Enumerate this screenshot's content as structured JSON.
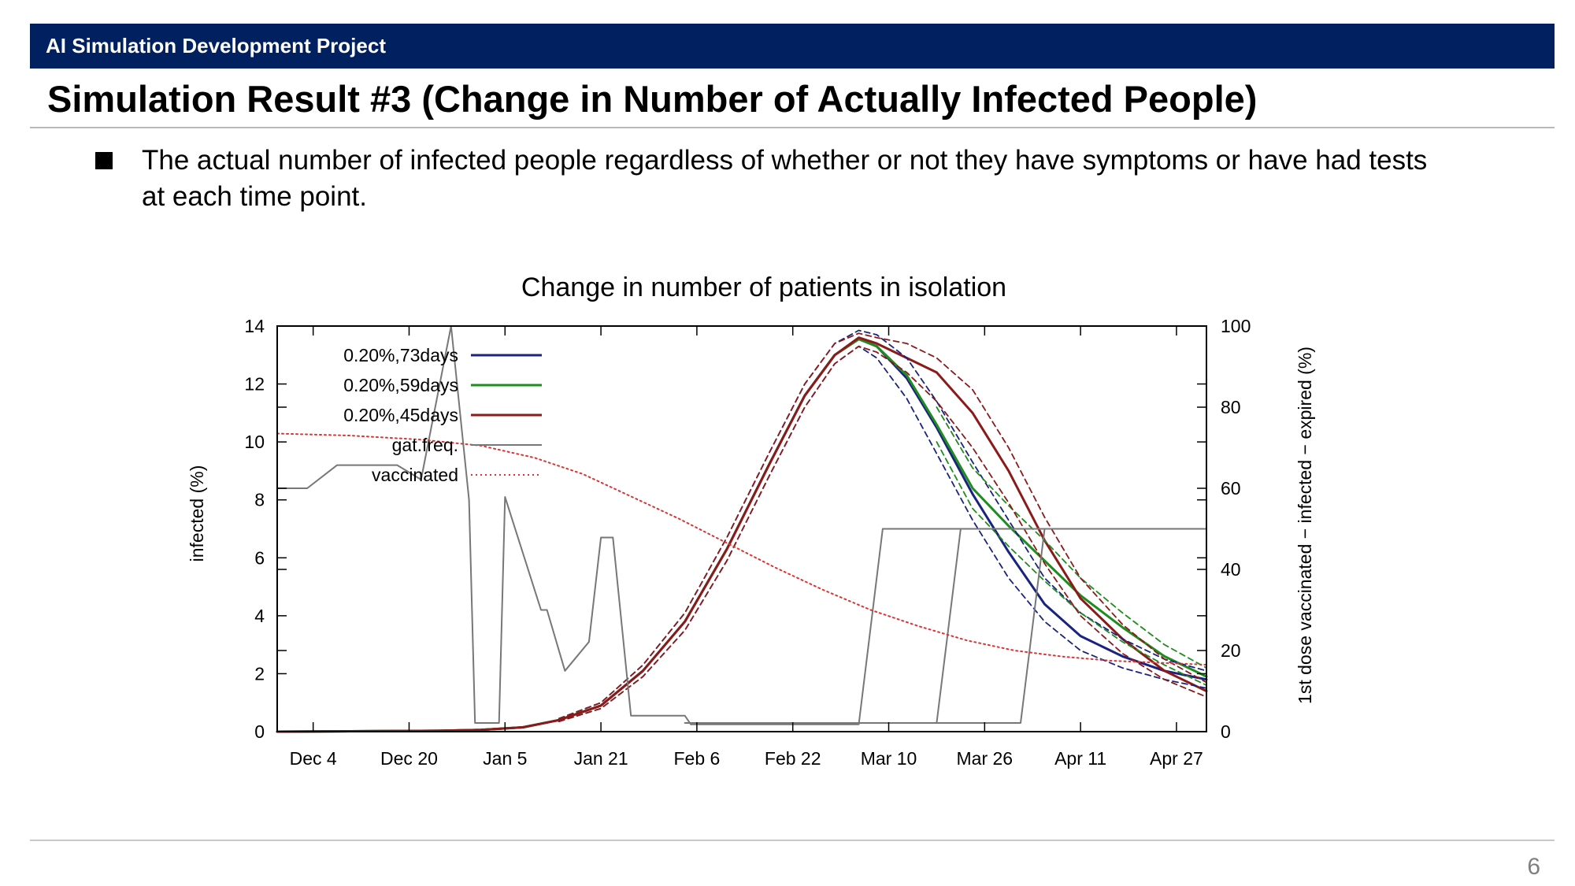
{
  "header": {
    "project": "AI Simulation Development Project"
  },
  "slide": {
    "title": "Simulation Result #3 (Change in Number of Actually Infected People)",
    "bullet": "The actual number of infected people regardless of whether or not they have symptoms or have had tests at each time point.",
    "page_number": "6"
  },
  "chart_data": {
    "type": "line",
    "title": "Change in number of patients in isolation",
    "ylabel": "infected (%)",
    "y2label": "1st dose vaccinated − infected − expired (%)",
    "ylim": [
      0,
      14
    ],
    "y2lim": [
      0,
      100
    ],
    "yticks": [
      0,
      2,
      4,
      6,
      8,
      10,
      12,
      14
    ],
    "y2ticks": [
      0,
      20,
      40,
      60,
      80,
      100
    ],
    "x_dates": [
      "2020-11-28",
      "2021-05-02"
    ],
    "x_ticks": [
      {
        "label": "Dec 4",
        "date": "2020-12-04"
      },
      {
        "label": "Dec 20",
        "date": "2020-12-20"
      },
      {
        "label": "Jan 5",
        "date": "2021-01-05"
      },
      {
        "label": "Jan 21",
        "date": "2021-01-21"
      },
      {
        "label": "Feb 6",
        "date": "2021-02-06"
      },
      {
        "label": "Feb 22",
        "date": "2021-02-22"
      },
      {
        "label": "Mar 10",
        "date": "2021-03-10"
      },
      {
        "label": "Mar 26",
        "date": "2021-03-26"
      },
      {
        "label": "Apr 11",
        "date": "2021-04-11"
      },
      {
        "label": "Apr 27",
        "date": "2021-04-27"
      }
    ],
    "legend_position": "top-left",
    "legend": [
      {
        "label": "0.20%,73days",
        "color": "#1a237e",
        "dash": "solid"
      },
      {
        "label": "0.20%,59days",
        "color": "#1e8c1e",
        "dash": "solid"
      },
      {
        "label": "0.20%,45days",
        "color": "#8b1a1a",
        "dash": "solid"
      },
      {
        "label": "gat.freq.",
        "color": "#777777",
        "dash": "solid"
      },
      {
        "label": "vaccinated",
        "color": "#dd3333",
        "dash": "dotted"
      }
    ],
    "series": [
      {
        "label_ref": 0,
        "axis": "y",
        "color": "#1a237e",
        "dash": "solid",
        "width": 3,
        "points": [
          [
            "2020-11-28",
            0
          ],
          [
            "2020-12-25",
            0.03
          ],
          [
            "2021-01-01",
            0.06
          ],
          [
            "2021-01-08",
            0.15
          ],
          [
            "2021-01-14",
            0.4
          ],
          [
            "2021-01-21",
            0.9
          ],
          [
            "2021-01-28",
            2.1
          ],
          [
            "2021-02-04",
            3.8
          ],
          [
            "2021-02-11",
            6.3
          ],
          [
            "2021-02-18",
            9.2
          ],
          [
            "2021-02-24",
            11.6
          ],
          [
            "2021-03-01",
            13.0
          ],
          [
            "2021-03-05",
            13.55
          ],
          [
            "2021-03-08",
            13.3
          ],
          [
            "2021-03-13",
            12.2
          ],
          [
            "2021-03-18",
            10.5
          ],
          [
            "2021-03-24",
            8.2
          ],
          [
            "2021-03-30",
            6.2
          ],
          [
            "2021-04-05",
            4.4
          ],
          [
            "2021-04-11",
            3.3
          ],
          [
            "2021-04-18",
            2.6
          ],
          [
            "2021-04-25",
            2.1
          ],
          [
            "2021-05-02",
            1.8
          ]
        ]
      },
      {
        "label_ref": 1,
        "axis": "y",
        "color": "#1e8c1e",
        "dash": "solid",
        "width": 3,
        "points": [
          [
            "2020-11-28",
            0
          ],
          [
            "2020-12-25",
            0.03
          ],
          [
            "2021-01-01",
            0.06
          ],
          [
            "2021-01-08",
            0.15
          ],
          [
            "2021-01-14",
            0.4
          ],
          [
            "2021-01-21",
            0.9
          ],
          [
            "2021-01-28",
            2.1
          ],
          [
            "2021-02-04",
            3.8
          ],
          [
            "2021-02-11",
            6.3
          ],
          [
            "2021-02-18",
            9.2
          ],
          [
            "2021-02-24",
            11.6
          ],
          [
            "2021-03-01",
            13.0
          ],
          [
            "2021-03-05",
            13.55
          ],
          [
            "2021-03-08",
            13.3
          ],
          [
            "2021-03-13",
            12.3
          ],
          [
            "2021-03-18",
            10.6
          ],
          [
            "2021-03-24",
            8.4
          ],
          [
            "2021-03-30",
            7.1
          ],
          [
            "2021-04-05",
            5.9
          ],
          [
            "2021-04-11",
            4.7
          ],
          [
            "2021-04-18",
            3.6
          ],
          [
            "2021-04-25",
            2.6
          ],
          [
            "2021-05-02",
            1.9
          ]
        ]
      },
      {
        "label_ref": 2,
        "axis": "y",
        "color": "#8b1a1a",
        "dash": "solid",
        "width": 3,
        "points": [
          [
            "2020-11-28",
            0
          ],
          [
            "2020-12-25",
            0.03
          ],
          [
            "2021-01-01",
            0.06
          ],
          [
            "2021-01-08",
            0.15
          ],
          [
            "2021-01-14",
            0.4
          ],
          [
            "2021-01-21",
            0.9
          ],
          [
            "2021-01-28",
            2.1
          ],
          [
            "2021-02-04",
            3.8
          ],
          [
            "2021-02-11",
            6.3
          ],
          [
            "2021-02-18",
            9.2
          ],
          [
            "2021-02-24",
            11.6
          ],
          [
            "2021-03-01",
            13.0
          ],
          [
            "2021-03-05",
            13.6
          ],
          [
            "2021-03-08",
            13.4
          ],
          [
            "2021-03-13",
            12.9
          ],
          [
            "2021-03-18",
            12.4
          ],
          [
            "2021-03-24",
            11.0
          ],
          [
            "2021-03-30",
            9.0
          ],
          [
            "2021-04-05",
            6.6
          ],
          [
            "2021-04-11",
            4.6
          ],
          [
            "2021-04-18",
            3.2
          ],
          [
            "2021-04-25",
            2.1
          ],
          [
            "2021-05-02",
            1.4
          ]
        ]
      },
      {
        "axis": "y",
        "color": "#1a237e",
        "dash": "dashed",
        "width": 1.8,
        "points": [
          [
            "2021-01-14",
            0.45
          ],
          [
            "2021-01-21",
            1.0
          ],
          [
            "2021-01-28",
            2.3
          ],
          [
            "2021-02-04",
            4.1
          ],
          [
            "2021-02-11",
            6.7
          ],
          [
            "2021-02-18",
            9.6
          ],
          [
            "2021-02-24",
            12.0
          ],
          [
            "2021-03-01",
            13.4
          ],
          [
            "2021-03-05",
            13.85
          ],
          [
            "2021-03-08",
            13.7
          ],
          [
            "2021-03-13",
            12.9
          ],
          [
            "2021-03-18",
            11.4
          ],
          [
            "2021-03-24",
            9.3
          ],
          [
            "2021-03-30",
            7.3
          ],
          [
            "2021-04-05",
            5.3
          ],
          [
            "2021-04-11",
            4.1
          ],
          [
            "2021-04-18",
            3.2
          ],
          [
            "2021-04-25",
            2.5
          ],
          [
            "2021-05-02",
            2.1
          ]
        ]
      },
      {
        "axis": "y",
        "color": "#1a237e",
        "dash": "dashed",
        "width": 1.8,
        "points": [
          [
            "2021-01-14",
            0.35
          ],
          [
            "2021-01-21",
            0.8
          ],
          [
            "2021-01-28",
            1.9
          ],
          [
            "2021-02-04",
            3.5
          ],
          [
            "2021-02-11",
            5.9
          ],
          [
            "2021-02-18",
            8.8
          ],
          [
            "2021-02-24",
            11.2
          ],
          [
            "2021-03-01",
            12.7
          ],
          [
            "2021-03-05",
            13.3
          ],
          [
            "2021-03-08",
            12.9
          ],
          [
            "2021-03-13",
            11.5
          ],
          [
            "2021-03-18",
            9.6
          ],
          [
            "2021-03-24",
            7.3
          ],
          [
            "2021-03-30",
            5.3
          ],
          [
            "2021-04-05",
            3.8
          ],
          [
            "2021-04-11",
            2.8
          ],
          [
            "2021-04-18",
            2.2
          ],
          [
            "2021-04-25",
            1.8
          ],
          [
            "2021-05-02",
            1.5
          ]
        ]
      },
      {
        "axis": "y",
        "color": "#1e8c1e",
        "dash": "dashed",
        "width": 1.8,
        "points": [
          [
            "2021-03-18",
            11.2
          ],
          [
            "2021-03-24",
            9.1
          ],
          [
            "2021-03-30",
            7.8
          ],
          [
            "2021-04-05",
            6.6
          ],
          [
            "2021-04-11",
            5.3
          ],
          [
            "2021-04-18",
            4.1
          ],
          [
            "2021-04-25",
            3.0
          ],
          [
            "2021-05-02",
            2.2
          ]
        ]
      },
      {
        "axis": "y",
        "color": "#1e8c1e",
        "dash": "dashed",
        "width": 1.8,
        "points": [
          [
            "2021-03-18",
            10.0
          ],
          [
            "2021-03-24",
            7.7
          ],
          [
            "2021-03-30",
            6.4
          ],
          [
            "2021-04-05",
            5.2
          ],
          [
            "2021-04-11",
            4.1
          ],
          [
            "2021-04-18",
            3.1
          ],
          [
            "2021-04-25",
            2.3
          ],
          [
            "2021-05-02",
            1.6
          ]
        ]
      },
      {
        "axis": "y",
        "color": "#8b1a1a",
        "dash": "dashed",
        "width": 1.8,
        "points": [
          [
            "2021-01-14",
            0.45
          ],
          [
            "2021-01-21",
            1.0
          ],
          [
            "2021-01-28",
            2.3
          ],
          [
            "2021-02-04",
            4.1
          ],
          [
            "2021-02-11",
            6.7
          ],
          [
            "2021-02-18",
            9.6
          ],
          [
            "2021-02-24",
            12.0
          ],
          [
            "2021-03-01",
            13.4
          ],
          [
            "2021-03-05",
            13.75
          ],
          [
            "2021-03-08",
            13.6
          ],
          [
            "2021-03-13",
            13.4
          ],
          [
            "2021-03-18",
            12.9
          ],
          [
            "2021-03-24",
            11.8
          ],
          [
            "2021-03-30",
            9.8
          ],
          [
            "2021-04-05",
            7.4
          ],
          [
            "2021-04-11",
            5.3
          ],
          [
            "2021-04-18",
            3.7
          ],
          [
            "2021-04-25",
            2.5
          ],
          [
            "2021-05-02",
            1.7
          ]
        ]
      },
      {
        "axis": "y",
        "color": "#8b1a1a",
        "dash": "dashed",
        "width": 1.8,
        "points": [
          [
            "2021-01-14",
            0.35
          ],
          [
            "2021-01-21",
            0.8
          ],
          [
            "2021-01-28",
            1.9
          ],
          [
            "2021-02-04",
            3.5
          ],
          [
            "2021-02-11",
            5.9
          ],
          [
            "2021-02-18",
            8.8
          ],
          [
            "2021-02-24",
            11.2
          ],
          [
            "2021-03-01",
            12.7
          ],
          [
            "2021-03-05",
            13.3
          ],
          [
            "2021-03-08",
            13.1
          ],
          [
            "2021-03-13",
            12.4
          ],
          [
            "2021-03-18",
            11.4
          ],
          [
            "2021-03-24",
            9.8
          ],
          [
            "2021-03-30",
            7.9
          ],
          [
            "2021-04-05",
            5.8
          ],
          [
            "2021-04-11",
            4.0
          ],
          [
            "2021-04-18",
            2.7
          ],
          [
            "2021-04-25",
            1.8
          ],
          [
            "2021-05-02",
            1.2
          ]
        ]
      },
      {
        "label_ref": 3,
        "axis": "y",
        "color": "#777777",
        "dash": "solid",
        "width": 2,
        "points": [
          [
            "2020-11-28",
            8.4
          ],
          [
            "2020-12-03",
            8.4
          ],
          [
            "2020-12-08",
            9.2
          ],
          [
            "2020-12-18",
            9.2
          ],
          [
            "2020-12-22",
            8.7
          ],
          [
            "2020-12-27",
            14.0
          ],
          [
            "2020-12-30",
            8.0
          ],
          [
            "2020-12-31",
            0.3
          ],
          [
            "2021-01-04",
            0.3
          ],
          [
            "2021-01-05",
            8.1
          ],
          [
            "2021-01-11",
            4.2
          ],
          [
            "2021-01-12",
            4.2
          ],
          [
            "2021-01-15",
            2.1
          ],
          [
            "2021-01-19",
            3.1
          ],
          [
            "2021-01-21",
            6.7
          ],
          [
            "2021-01-23",
            6.7
          ],
          [
            "2021-01-26",
            0.55
          ],
          [
            "2021-02-04",
            0.55
          ],
          [
            "2021-02-05",
            0.25
          ],
          [
            "2021-03-05",
            0.25
          ],
          [
            "2021-03-09",
            7.0
          ],
          [
            "2021-05-02",
            7.0
          ]
        ]
      },
      {
        "axis": "y",
        "color": "#777777",
        "dash": "solid",
        "width": 2,
        "points": [
          [
            "2021-02-04",
            0.3
          ],
          [
            "2021-03-18",
            0.3
          ],
          [
            "2021-03-22",
            7.0
          ]
        ]
      },
      {
        "axis": "y",
        "color": "#777777",
        "dash": "solid",
        "width": 2,
        "points": [
          [
            "2021-03-18",
            0.3
          ],
          [
            "2021-04-01",
            0.3
          ],
          [
            "2021-04-05",
            7.0
          ]
        ]
      },
      {
        "label_ref": 4,
        "axis": "y2",
        "color": "#dd3333",
        "dash": "dotted",
        "width": 2,
        "points": [
          [
            "2020-11-28",
            73.5
          ],
          [
            "2020-12-10",
            73.0
          ],
          [
            "2020-12-22",
            72.0
          ],
          [
            "2021-01-01",
            70.5
          ],
          [
            "2021-01-10",
            67.5
          ],
          [
            "2021-01-18",
            63.5
          ],
          [
            "2021-01-26",
            58.0
          ],
          [
            "2021-02-03",
            52.5
          ],
          [
            "2021-02-11",
            46.5
          ],
          [
            "2021-02-19",
            40.5
          ],
          [
            "2021-02-27",
            35.0
          ],
          [
            "2021-03-07",
            30.0
          ],
          [
            "2021-03-15",
            26.0
          ],
          [
            "2021-03-23",
            22.5
          ],
          [
            "2021-03-31",
            20.0
          ],
          [
            "2021-04-08",
            18.5
          ],
          [
            "2021-04-16",
            17.5
          ],
          [
            "2021-04-24",
            17.0
          ],
          [
            "2021-05-02",
            16.5
          ]
        ]
      }
    ]
  }
}
